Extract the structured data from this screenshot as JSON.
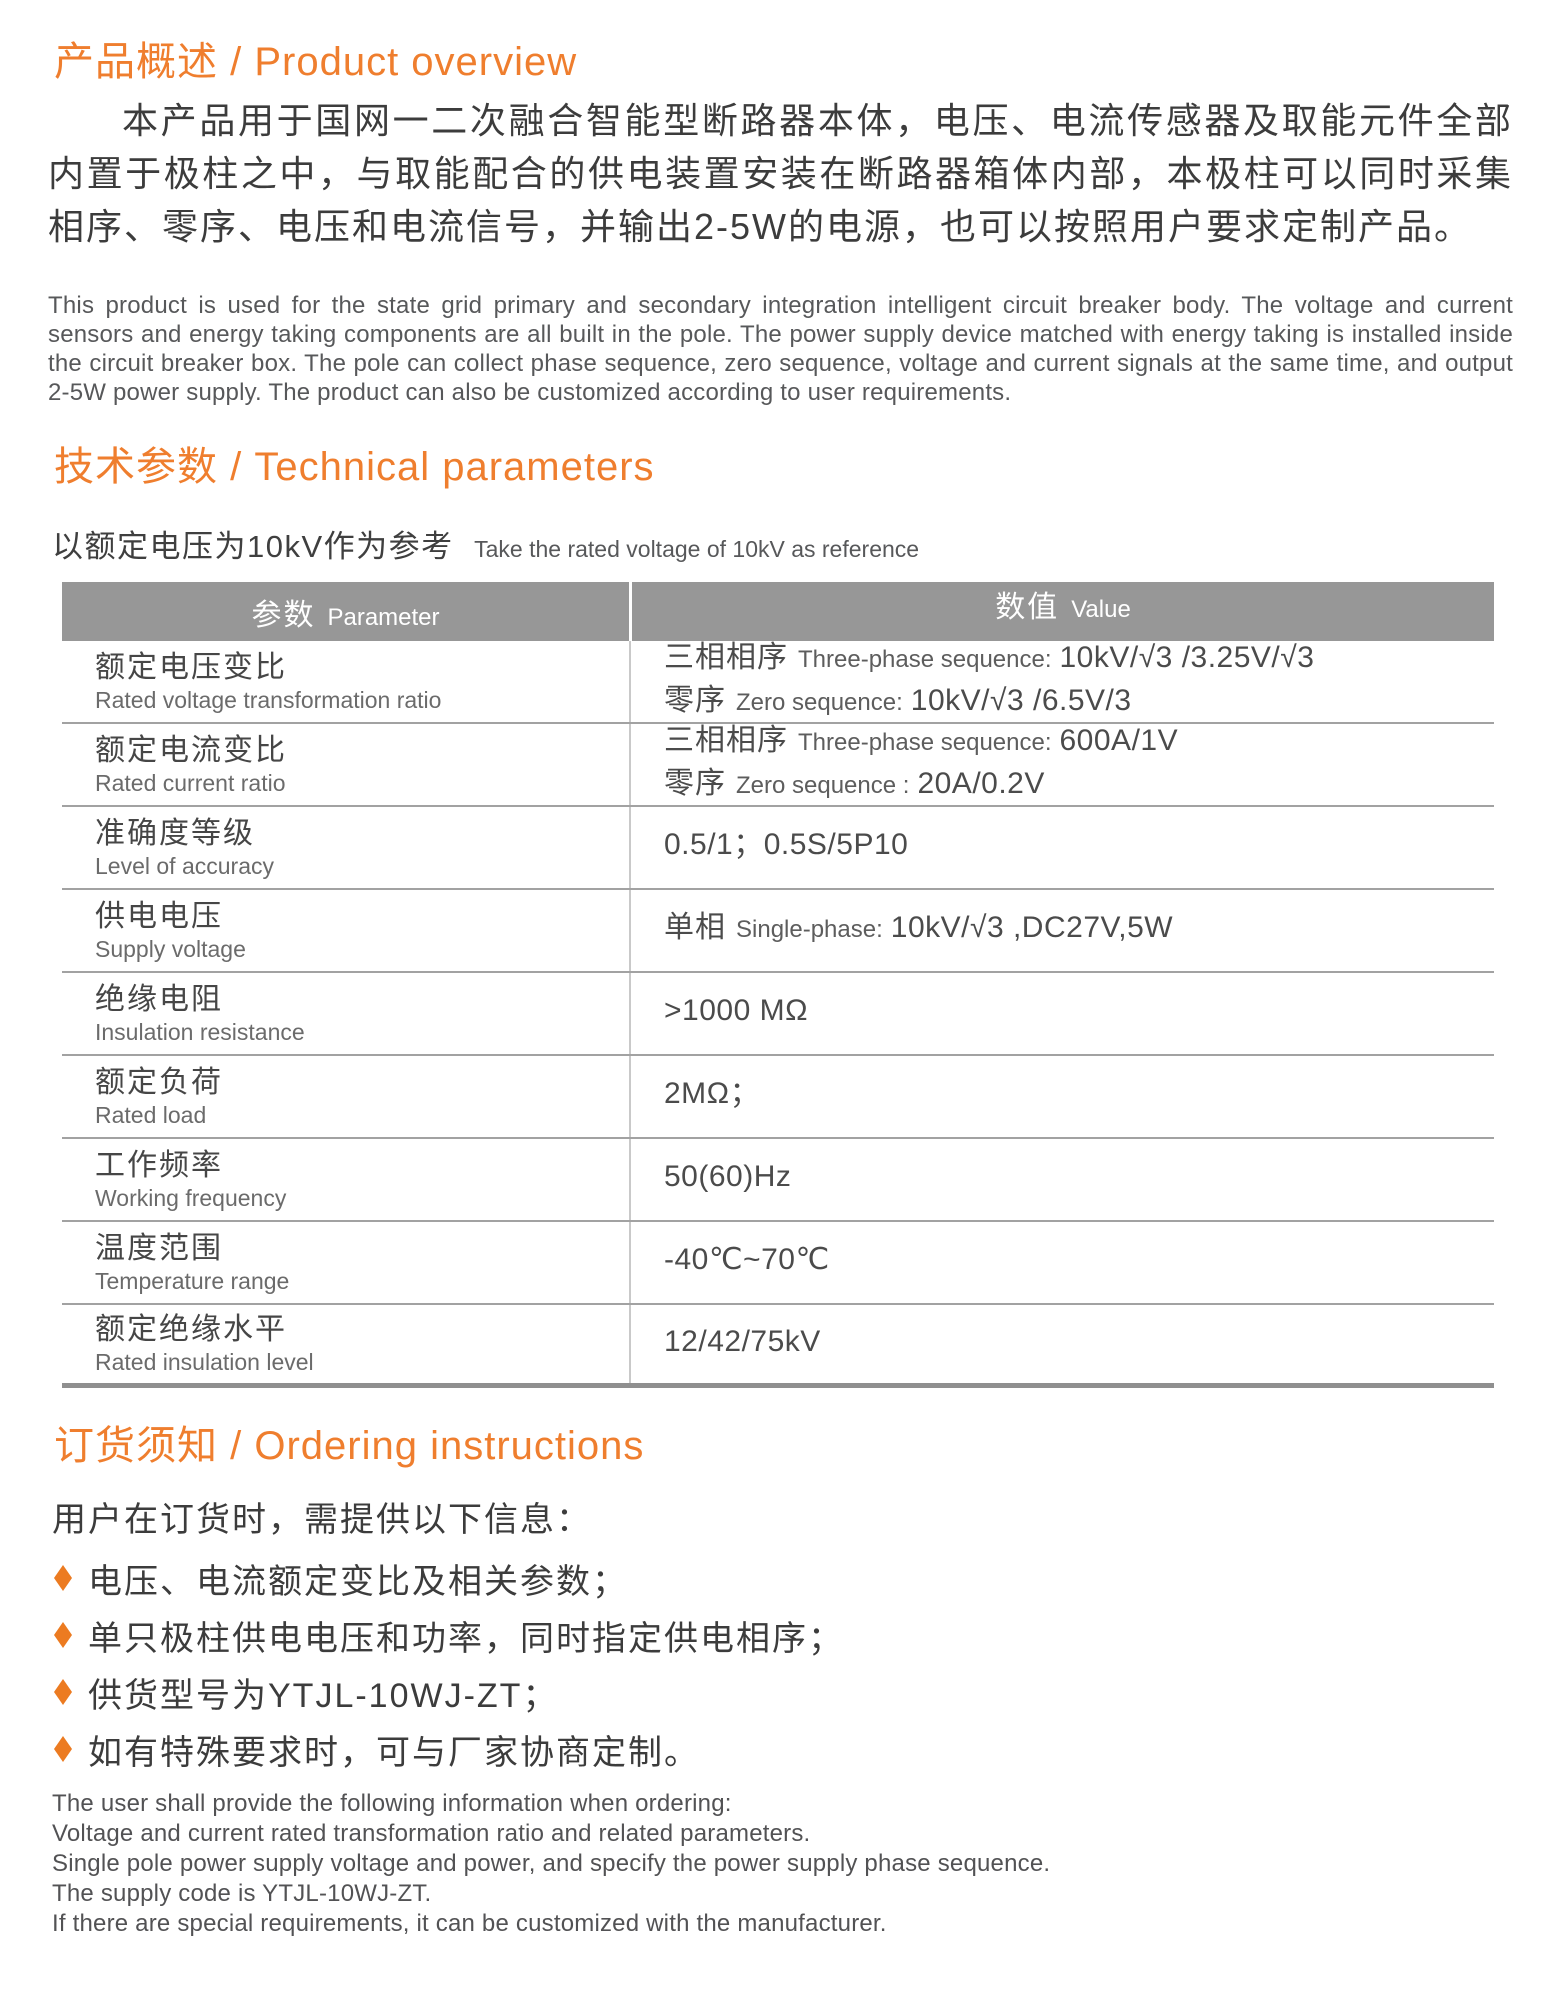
{
  "overview": {
    "heading": "产品概述 / Product overview",
    "paragraph_cn": "本产品用于国网一二次融合智能型断路器本体，电压、电流传感器及取能元件全部内置于极柱之中，与取能配合的供电装置安装在断路器箱体内部，本极柱可以同时采集相序、零序、电压和电流信号，并输出2-5W的电源，也可以按照用户要求定制产品。",
    "paragraph_en": "This product is used for the state grid primary and secondary integration intelligent circuit breaker body. The voltage and current sensors and energy taking components are all built in the pole. The power supply device matched with energy taking is installed inside the circuit breaker box. The pole can collect phase sequence, zero sequence, voltage and current signals at the same time, and output 2-5W power supply. The product can also be customized according to user requirements."
  },
  "technical": {
    "heading": "技术参数 / Technical parameters",
    "note_cn": "以额定电压为10kV作为参考",
    "note_en": "Take the rated voltage of 10kV as reference",
    "table": {
      "header": {
        "param_cn": "参数",
        "param_en": "Parameter",
        "value_cn": "数值",
        "value_en": "Value"
      },
      "rows": [
        {
          "param_cn": "额定电压变比",
          "param_en": "Rated voltage transformation ratio",
          "line1": {
            "cn": "三相相序",
            "en": "Three-phase sequence:",
            "val": "10kV/√3 /3.25V/√3"
          },
          "line2": {
            "cn": "零序",
            "en": "Zero sequence:",
            "val": "10kV/√3 /6.5V/3"
          }
        },
        {
          "param_cn": "额定电流变比",
          "param_en": "Rated current ratio",
          "line1": {
            "cn": "三相相序",
            "en": "Three-phase sequence:",
            "val": "600A/1V"
          },
          "line2": {
            "cn": "零序",
            "en": "Zero sequence :",
            "val": "20A/0.2V"
          }
        },
        {
          "param_cn": "准确度等级",
          "param_en": "Level of accuracy",
          "line1": {
            "val": "0.5/1；0.5S/5P10"
          }
        },
        {
          "param_cn": "供电电压",
          "param_en": "Supply voltage",
          "line1": {
            "cn": "单相",
            "en": "Single-phase:",
            "val": "10kV/√3 ,DC27V,5W"
          }
        },
        {
          "param_cn": "绝缘电阻",
          "param_en": "Insulation resistance",
          "line1": {
            "val": ">1000 MΩ"
          }
        },
        {
          "param_cn": "额定负荷",
          "param_en": "Rated load",
          "line1": {
            "val": "2MΩ；"
          }
        },
        {
          "param_cn": "工作频率",
          "param_en": "Working frequency",
          "line1": {
            "val": "50(60)Hz"
          }
        },
        {
          "param_cn": "温度范围",
          "param_en": "Temperature range",
          "line1": {
            "val": "-40℃~70℃"
          }
        },
        {
          "param_cn": "额定绝缘水平",
          "param_en": "Rated insulation level",
          "line1": {
            "val": "12/42/75kV"
          }
        }
      ]
    }
  },
  "ordering": {
    "heading": "订货须知 / Ordering instructions",
    "intro": "用户在订货时，需提供以下信息：",
    "bullets": [
      "电压、电流额定变比及相关参数；",
      "单只极柱供电电压和功率，同时指定供电相序；",
      "供货型号为YTJL-10WJ-ZT；",
      "如有特殊要求时，可与厂家协商定制。"
    ],
    "footer_lines": [
      "The user shall provide the following information when ordering:",
      "Voltage and current rated transformation ratio and related parameters.",
      "Single pole power supply voltage and power, and specify the power supply phase sequence.",
      "The supply code is YTJL-10WJ-ZT.",
      "If there are special requirements, it can be customized with the manufacturer."
    ]
  },
  "colors": {
    "accent_orange": "#ef7e2e",
    "bullet_orange": "#ec7b21",
    "table_header_bg": "#979797",
    "body_text": "#3c3c3c"
  }
}
